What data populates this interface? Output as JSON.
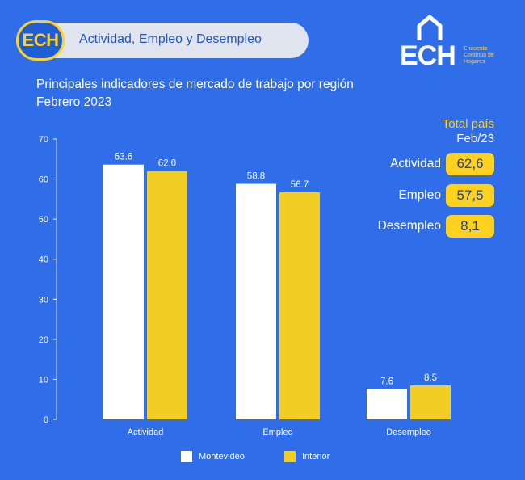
{
  "header": {
    "logo_badge": "ECH",
    "pill_label": "Actividad, Empleo y Desempleo",
    "brand_text": "ECH",
    "brand_sub": [
      "Encuesta",
      "Continua de",
      "Hogares"
    ]
  },
  "subtitle": {
    "line1": "Principales indicadores de mercado de trabajo por región",
    "line2": "Febrero 2023"
  },
  "kpi": {
    "title": "Total país",
    "period": "Feb/23",
    "rows": [
      {
        "label": "Actividad",
        "value": "62,6"
      },
      {
        "label": "Empleo",
        "value": "57,5"
      },
      {
        "label": "Desempleo",
        "value": "8,1"
      }
    ]
  },
  "colors": {
    "background": "#2f6ee8",
    "montevideo": "#ffffff",
    "interior": "#f2cd24",
    "accent": "#ffd21f"
  },
  "chart_data": {
    "type": "bar",
    "title": "",
    "xlabel": "",
    "ylabel": "",
    "categories": [
      "Actividad",
      "Empleo",
      "Desempleo"
    ],
    "ylim": [
      0,
      70
    ],
    "yticks": [
      0,
      10,
      20,
      30,
      40,
      50,
      60,
      70
    ],
    "grid": false,
    "legend": "bottom",
    "series": [
      {
        "name": "Montevideo",
        "values": [
          63.6,
          58.8,
          7.6
        ],
        "labels": [
          "63.6",
          "58.8",
          "7.6"
        ]
      },
      {
        "name": "Interior",
        "values": [
          62.0,
          56.7,
          8.5
        ],
        "labels": [
          "62.0",
          "56.7",
          "8.5"
        ]
      }
    ]
  }
}
